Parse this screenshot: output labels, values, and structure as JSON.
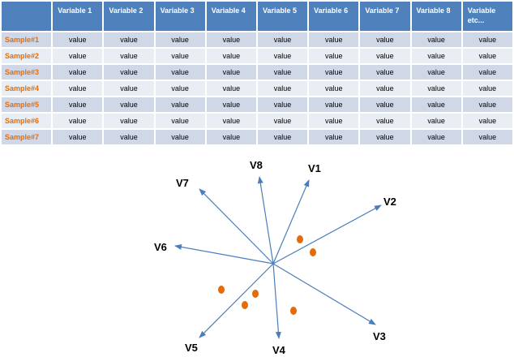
{
  "table": {
    "corner": "",
    "columns": [
      "Variable 1",
      "Variable 2",
      "Variable 3",
      "Variable 4",
      "Variable 5",
      "Variable 6",
      "Variable 7",
      "Variable 8",
      "Variable etc..."
    ],
    "rows": [
      {
        "label": "Sample#1",
        "values": [
          "value",
          "value",
          "value",
          "value",
          "value",
          "value",
          "value",
          "value",
          "value"
        ]
      },
      {
        "label": "Sample#2",
        "values": [
          "value",
          "value",
          "value",
          "value",
          "value",
          "value",
          "value",
          "value",
          "value"
        ]
      },
      {
        "label": "Sample#3",
        "values": [
          "value",
          "value",
          "value",
          "value",
          "value",
          "value",
          "value",
          "value",
          "value"
        ]
      },
      {
        "label": "Sample#4",
        "values": [
          "value",
          "value",
          "value",
          "value",
          "value",
          "value",
          "value",
          "value",
          "value"
        ]
      },
      {
        "label": "Sample#5",
        "values": [
          "value",
          "value",
          "value",
          "value",
          "value",
          "value",
          "value",
          "value",
          "value"
        ]
      },
      {
        "label": "Sample#6",
        "values": [
          "value",
          "value",
          "value",
          "value",
          "value",
          "value",
          "value",
          "value",
          "value"
        ]
      },
      {
        "label": "Sample#7",
        "values": [
          "value",
          "value",
          "value",
          "value",
          "value",
          "value",
          "value",
          "value",
          "value"
        ]
      }
    ]
  },
  "biplot": {
    "vectors": [
      "V1",
      "V2",
      "V3",
      "V4",
      "V5",
      "V6",
      "V7",
      "V8"
    ],
    "colors": {
      "vector": "#4a7ebb",
      "point": "#e36c09",
      "header": "#4f81bd",
      "row_label": "#e46c0a"
    }
  }
}
